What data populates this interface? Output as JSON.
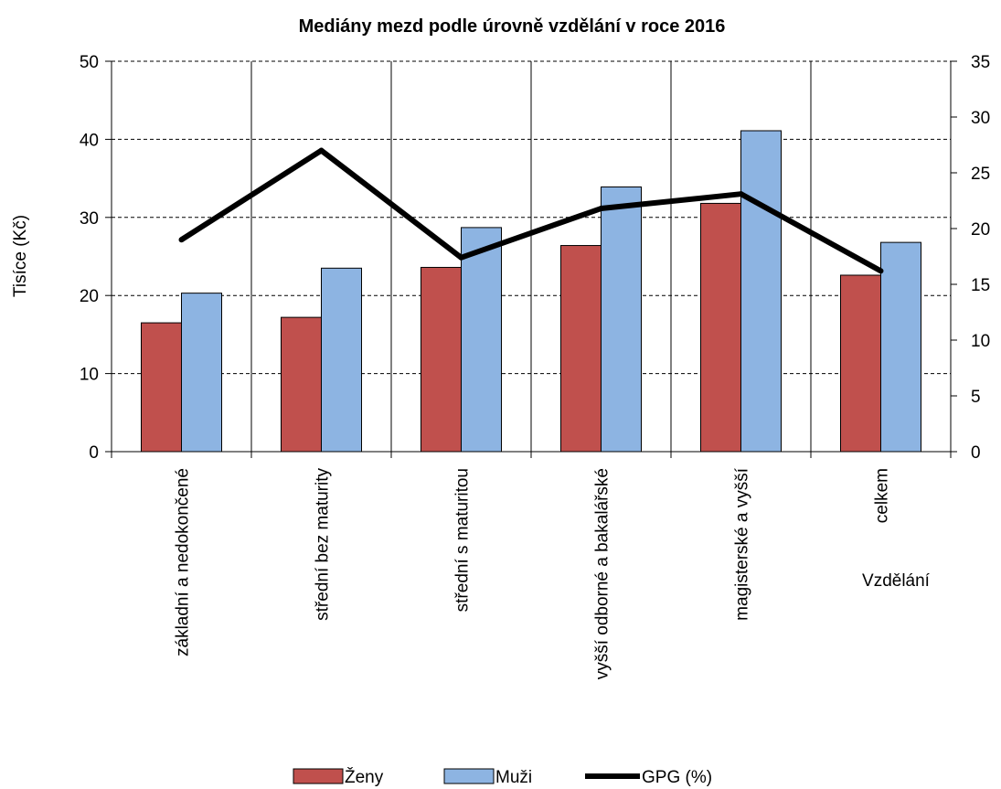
{
  "chart_data": {
    "type": "bar",
    "title": "Mediány mezd podle úrovně vzdělání v roce 2016",
    "xlabel": "Vzdělání",
    "ylabel": "Tisíce (Kč)",
    "categories": [
      "základní a nedokončené",
      "střední bez maturity",
      "střední s maturitou",
      "vyšší odborné a bakalářské",
      "magisterské a vyšší",
      "celkem"
    ],
    "series": [
      {
        "name": "Ženy",
        "type": "bar",
        "axis": "left",
        "color": "#C0504D",
        "values": [
          16.5,
          17.2,
          23.6,
          26.4,
          31.8,
          22.6
        ]
      },
      {
        "name": "Muži",
        "type": "bar",
        "axis": "left",
        "color": "#8DB4E2",
        "values": [
          20.3,
          23.5,
          28.7,
          33.9,
          41.1,
          26.8
        ]
      },
      {
        "name": "GPG (%)",
        "type": "line",
        "axis": "right",
        "color": "#000000",
        "values": [
          19.0,
          27.0,
          17.4,
          21.8,
          23.1,
          16.2
        ]
      }
    ],
    "ylim": [
      0,
      50
    ],
    "yticks": [
      "0",
      "10",
      "20",
      "30",
      "40",
      "50"
    ],
    "y2lim": [
      0,
      35
    ],
    "y2ticks": [
      "0",
      "5",
      "10",
      "15",
      "20",
      "25",
      "30",
      "35"
    ],
    "grid": "horizontal dashed",
    "legend": "bottom"
  }
}
